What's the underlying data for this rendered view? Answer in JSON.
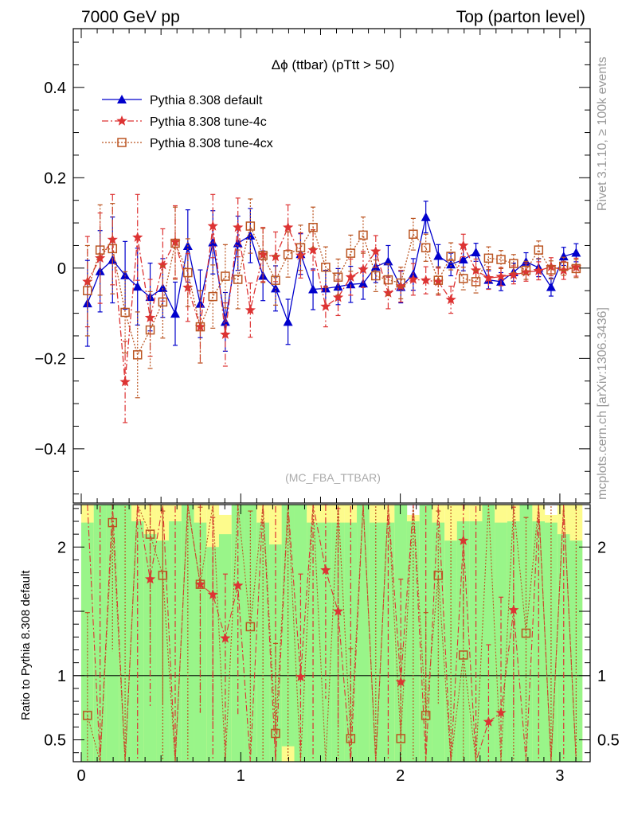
{
  "header": {
    "left": "7000 GeV pp",
    "right": "Top (parton level)"
  },
  "side_labels": {
    "rivet": "Rivet 3.1.10, ≥ 100k events",
    "mcplots": "mcplots.cern.ch [arXiv:1306.3436]"
  },
  "chart_data": {
    "type": "line",
    "title": "Δϕ (ttbar) (pTtt > 50)",
    "watermark": "(MC_FBA_TTBAR)",
    "x": [
      0.039,
      0.118,
      0.196,
      0.275,
      0.353,
      0.432,
      0.511,
      0.589,
      0.668,
      0.746,
      0.825,
      0.903,
      0.982,
      1.06,
      1.139,
      1.218,
      1.296,
      1.375,
      1.453,
      1.532,
      1.61,
      1.689,
      1.767,
      1.846,
      1.924,
      2.003,
      2.081,
      2.16,
      2.238,
      2.317,
      2.395,
      2.474,
      2.553,
      2.631,
      2.71,
      2.788,
      2.867,
      2.945,
      3.024,
      3.102
    ],
    "xlim": [
      -0.05,
      3.19
    ],
    "xticks": [
      "0",
      "1",
      "2",
      "3"
    ],
    "main": {
      "ylim": [
        -0.52,
        0.53
      ],
      "yticks": [
        "−0.4",
        "−0.2",
        "0",
        "0.2",
        "0.4"
      ],
      "series": [
        {
          "name": "Pythia 8.308 default",
          "color": "#0000cc",
          "marker": "triangle",
          "values": [
            -0.078,
            -0.007,
            0.018,
            -0.016,
            -0.041,
            -0.064,
            -0.044,
            -0.101,
            0.049,
            -0.079,
            0.057,
            -0.119,
            0.055,
            0.072,
            -0.017,
            -0.045,
            -0.119,
            0.031,
            -0.047,
            -0.045,
            -0.041,
            -0.036,
            -0.034,
            0.003,
            0.015,
            -0.042,
            -0.014,
            0.113,
            0.027,
            0.008,
            0.019,
            0.035,
            -0.026,
            -0.03,
            -0.009,
            0.014,
            0.001,
            -0.042,
            0.026,
            0.034
          ],
          "errors": [
            0.095,
            0.09,
            0.095,
            0.075,
            0.085,
            0.075,
            0.065,
            0.07,
            0.08,
            0.075,
            0.07,
            0.065,
            0.06,
            0.06,
            0.055,
            0.05,
            0.05,
            0.045,
            0.045,
            0.04,
            0.04,
            0.04,
            0.035,
            0.035,
            0.035,
            0.035,
            0.035,
            0.035,
            0.025,
            0.025,
            0.025,
            0.02,
            0.02,
            0.02,
            0.02,
            0.02,
            0.02,
            0.02,
            0.02,
            0.02
          ]
        },
        {
          "name": "Pythia 8.308 tune-4c",
          "color": "#dd3333",
          "marker": "star",
          "values": [
            -0.03,
            0.022,
            0.063,
            -0.252,
            0.068,
            -0.11,
            0.007,
            0.058,
            -0.043,
            -0.13,
            0.093,
            -0.147,
            0.09,
            -0.093,
            0.03,
            0.025,
            0.09,
            0.028,
            0.04,
            -0.085,
            -0.065,
            -0.02,
            -0.003,
            0.037,
            -0.055,
            -0.04,
            -0.025,
            -0.027,
            -0.03,
            -0.07,
            0.05,
            -0.005,
            -0.022,
            -0.019,
            -0.015,
            -0.009,
            -0.006,
            0.003,
            -0.005,
            0.002
          ],
          "errors": [
            0.1,
            0.1,
            0.1,
            0.09,
            0.095,
            0.085,
            0.08,
            0.08,
            0.075,
            0.08,
            0.07,
            0.07,
            0.065,
            0.06,
            0.06,
            0.055,
            0.05,
            0.05,
            0.045,
            0.045,
            0.04,
            0.04,
            0.04,
            0.035,
            0.035,
            0.035,
            0.035,
            0.03,
            0.03,
            0.03,
            0.025,
            0.025,
            0.025,
            0.02,
            0.02,
            0.02,
            0.02,
            0.02,
            0.02,
            0.02
          ]
        },
        {
          "name": "Pythia 8.308 tune-4cx",
          "color": "#bb5522",
          "marker": "open-square",
          "values": [
            -0.05,
            0.04,
            0.043,
            -0.098,
            -0.192,
            -0.137,
            -0.075,
            0.055,
            -0.01,
            -0.13,
            -0.063,
            -0.018,
            -0.025,
            0.093,
            0.028,
            -0.027,
            0.03,
            0.045,
            0.09,
            0.002,
            -0.02,
            0.033,
            0.073,
            -0.017,
            -0.026,
            -0.033,
            0.075,
            0.045,
            -0.027,
            0.026,
            -0.023,
            -0.03,
            0.022,
            0.019,
            0.01,
            -0.005,
            0.04,
            -0.004,
            0.004,
            -0.001
          ],
          "errors": [
            0.1,
            0.1,
            0.1,
            0.09,
            0.095,
            0.085,
            0.08,
            0.08,
            0.075,
            0.08,
            0.07,
            0.07,
            0.065,
            0.06,
            0.06,
            0.055,
            0.05,
            0.05,
            0.045,
            0.045,
            0.04,
            0.04,
            0.04,
            0.035,
            0.035,
            0.035,
            0.035,
            0.03,
            0.03,
            0.03,
            0.025,
            0.025,
            0.025,
            0.02,
            0.02,
            0.02,
            0.02,
            0.02,
            0.02,
            0.02
          ]
        }
      ]
    },
    "ratio": {
      "ylabel": "Ratio to Pythia 8.308 default",
      "ylim": [
        0.33,
        2.33
      ],
      "yticks": [
        "0.5",
        "1",
        "2"
      ],
      "band_colors": {
        "inner": "#99f589",
        "outer": "#fdfb8c"
      },
      "band_inner": [
        [
          0.33,
          2.19
        ],
        [
          0.33,
          2.33
        ],
        [
          0.33,
          2.33
        ],
        [
          0.33,
          2.33
        ],
        [
          0.33,
          2.2
        ],
        [
          0.33,
          2.1
        ],
        [
          0.33,
          2.05
        ],
        [
          0.33,
          2.2
        ],
        [
          0.33,
          2.33
        ],
        [
          0.33,
          2.19
        ],
        [
          0.33,
          2.0
        ],
        [
          0.33,
          2.1
        ],
        [
          0.33,
          2.33
        ],
        [
          0.33,
          2.33
        ],
        [
          0.33,
          2.19
        ],
        [
          0.33,
          2.02
        ],
        [
          0.45,
          2.33
        ],
        [
          0.33,
          2.33
        ],
        [
          0.33,
          2.19
        ],
        [
          0.33,
          2.19
        ],
        [
          0.33,
          2.19
        ],
        [
          0.33,
          2.19
        ],
        [
          0.33,
          2.33
        ],
        [
          0.33,
          2.19
        ],
        [
          0.33,
          2.19
        ],
        [
          0.33,
          2.33
        ],
        [
          0.33,
          2.2
        ],
        [
          0.33,
          2.33
        ],
        [
          0.33,
          2.19
        ],
        [
          0.33,
          2.05
        ],
        [
          0.33,
          2.2
        ],
        [
          0.33,
          2.2
        ],
        [
          0.33,
          2.33
        ],
        [
          0.33,
          2.19
        ],
        [
          0.33,
          2.2
        ],
        [
          0.33,
          2.33
        ],
        [
          0.33,
          2.2
        ],
        [
          0.33,
          2.19
        ],
        [
          0.33,
          2.1
        ],
        [
          0.33,
          2.05
        ]
      ],
      "band_outer": [
        [
          0.33,
          2.33
        ],
        [
          0.33,
          2.33
        ],
        [
          0.33,
          2.33
        ],
        [
          0.33,
          2.33
        ],
        [
          0.33,
          2.33
        ],
        [
          0.33,
          2.33
        ],
        [
          0.33,
          2.33
        ],
        [
          0.33,
          2.33
        ],
        [
          0.33,
          2.33
        ],
        [
          0.33,
          2.33
        ],
        [
          0.33,
          2.33
        ],
        [
          0.33,
          2.25
        ],
        [
          0.33,
          2.33
        ],
        [
          0.33,
          2.33
        ],
        [
          0.33,
          2.33
        ],
        [
          0.33,
          2.33
        ],
        [
          0.33,
          2.33
        ],
        [
          0.33,
          2.33
        ],
        [
          0.33,
          2.33
        ],
        [
          0.33,
          2.33
        ],
        [
          0.33,
          2.33
        ],
        [
          0.33,
          2.33
        ],
        [
          0.33,
          2.33
        ],
        [
          0.33,
          2.33
        ],
        [
          0.33,
          2.33
        ],
        [
          0.33,
          2.33
        ],
        [
          0.33,
          2.25
        ],
        [
          0.33,
          2.33
        ],
        [
          0.33,
          2.33
        ],
        [
          0.33,
          2.33
        ],
        [
          0.33,
          2.33
        ],
        [
          0.33,
          2.33
        ],
        [
          0.33,
          2.33
        ],
        [
          0.33,
          2.33
        ],
        [
          0.33,
          2.33
        ],
        [
          0.33,
          2.33
        ],
        [
          0.33,
          2.33
        ],
        [
          0.33,
          2.25
        ],
        [
          0.33,
          2.33
        ],
        [
          0.33,
          2.33
        ]
      ],
      "series": [
        {
          "name": "Pythia 8.308 tune-4c",
          "values": [
            null,
            null,
            null,
            null,
            null,
            1.75,
            null,
            null,
            null,
            1.71,
            1.63,
            1.29,
            1.7,
            null,
            null,
            null,
            null,
            0.99,
            null,
            1.82,
            1.5,
            null,
            null,
            null,
            null,
            0.95,
            null,
            null,
            null,
            null,
            2.05,
            null,
            0.64,
            0.71,
            1.51,
            null,
            null,
            null,
            null,
            null
          ],
          "err_up": [
            0.6,
            0.6,
            0.6,
            0.6,
            0.6,
            0.7,
            0.6,
            0.6,
            0.6,
            0.8,
            0.6,
            0.5,
            0.7,
            0.6,
            0.6,
            0.6,
            0.6,
            0.8,
            0.6,
            0.7,
            0.8,
            0.6,
            0.6,
            0.6,
            0.6,
            0.8,
            0.6,
            0.6,
            0.6,
            0.6,
            0.5,
            0.6,
            0.6,
            0.9,
            0.8,
            0.6,
            0.6,
            0.6,
            0.6,
            0.6
          ],
          "err_dn": [
            0.6,
            0.6,
            0.6,
            0.6,
            0.6,
            1.0,
            0.6,
            0.6,
            0.6,
            1.0,
            1.0,
            1.0,
            1.0,
            0.6,
            0.6,
            0.6,
            0.6,
            0.7,
            0.6,
            1.0,
            0.9,
            0.6,
            0.6,
            0.6,
            0.6,
            0.7,
            0.6,
            0.6,
            0.6,
            0.6,
            0.8,
            0.6,
            0.4,
            0.5,
            0.9,
            0.6,
            0.6,
            0.6,
            0.6,
            0.6
          ]
        },
        {
          "name": "Pythia 8.308 tune-4cx",
          "values": [
            0.69,
            null,
            2.19,
            null,
            null,
            2.1,
            1.78,
            null,
            null,
            1.71,
            null,
            null,
            null,
            1.38,
            null,
            0.55,
            null,
            null,
            null,
            null,
            null,
            0.51,
            null,
            null,
            null,
            0.51,
            null,
            0.69,
            1.78,
            null,
            1.16,
            null,
            null,
            null,
            null,
            1.33,
            null,
            null,
            null,
            null
          ],
          "err_up": [
            0.8,
            0.6,
            0.3,
            0.6,
            0.6,
            0.4,
            0.5,
            0.6,
            0.6,
            0.6,
            0.6,
            0.6,
            0.6,
            0.9,
            0.6,
            0.7,
            0.6,
            0.6,
            0.6,
            0.6,
            0.6,
            0.7,
            0.6,
            0.6,
            0.6,
            0.7,
            0.6,
            0.8,
            0.5,
            0.6,
            0.9,
            0.6,
            0.6,
            0.6,
            0.6,
            0.9,
            0.6,
            0.6,
            0.6,
            0.6
          ],
          "err_dn": [
            0.5,
            0.6,
            1.0,
            0.6,
            0.6,
            1.0,
            1.0,
            0.6,
            0.6,
            1.0,
            0.6,
            0.6,
            0.6,
            1.0,
            0.6,
            0.3,
            0.6,
            0.6,
            0.6,
            0.6,
            0.6,
            0.3,
            0.6,
            0.6,
            0.6,
            0.3,
            0.6,
            0.4,
            1.0,
            0.6,
            0.9,
            0.6,
            0.6,
            0.6,
            0.6,
            1.0,
            0.6,
            0.6,
            0.6,
            0.6
          ]
        }
      ],
      "spikes": [
        0.118,
        0.275,
        0.353,
        0.511,
        0.589,
        0.668,
        0.825,
        1.139,
        1.218,
        1.296,
        1.453,
        1.61,
        1.689,
        1.846,
        1.924,
        2.081,
        2.16,
        2.317,
        2.474,
        2.71,
        2.867,
        2.945,
        3.024,
        3.102
      ]
    }
  }
}
